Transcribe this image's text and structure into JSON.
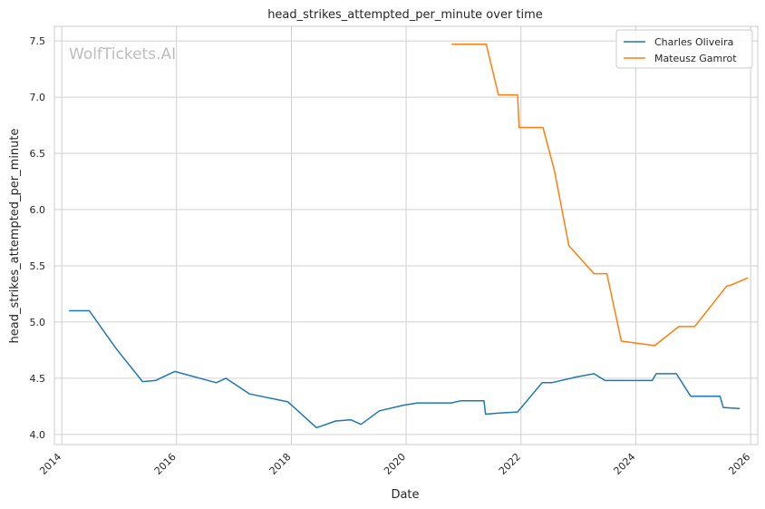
{
  "chart_data": {
    "type": "line",
    "title": "head_strikes_attempted_per_minute over time",
    "xlabel": "Date",
    "ylabel": "head_strikes_attempted_per_minute",
    "watermark": "WolfTickets.AI",
    "xlim": [
      "2013-11-15",
      "2026-02-15"
    ],
    "ylim": [
      3.91,
      7.63
    ],
    "x_ticks": [
      "2014",
      "2016",
      "2018",
      "2020",
      "2022",
      "2024",
      "2026"
    ],
    "y_ticks": [
      "4.0",
      "4.5",
      "5.0",
      "5.5",
      "6.0",
      "6.5",
      "7.0",
      "7.5"
    ],
    "grid": true,
    "legend_position": "top-right",
    "series": [
      {
        "name": "Charles Oliveira",
        "color": "#1f77b4",
        "points": [
          [
            "2014-02-20",
            5.1
          ],
          [
            "2014-06-25",
            5.1
          ],
          [
            "2014-12-15",
            4.76
          ],
          [
            "2015-05-30",
            4.47
          ],
          [
            "2015-08-20",
            4.48
          ],
          [
            "2015-12-20",
            4.56
          ],
          [
            "2016-09-10",
            4.46
          ],
          [
            "2016-11-10",
            4.5
          ],
          [
            "2017-04-10",
            4.36
          ],
          [
            "2017-12-10",
            4.29
          ],
          [
            "2018-06-10",
            4.06
          ],
          [
            "2018-10-10",
            4.12
          ],
          [
            "2019-01-15",
            4.13
          ],
          [
            "2019-03-20",
            4.09
          ],
          [
            "2019-07-15",
            4.21
          ],
          [
            "2019-12-15",
            4.26
          ],
          [
            "2020-03-15",
            4.28
          ],
          [
            "2020-10-15",
            4.28
          ],
          [
            "2020-12-15",
            4.3
          ],
          [
            "2021-05-10",
            4.3
          ],
          [
            "2021-05-20",
            4.18
          ],
          [
            "2021-08-15",
            4.19
          ],
          [
            "2021-12-10",
            4.2
          ],
          [
            "2022-05-15",
            4.46
          ],
          [
            "2022-07-15",
            4.46
          ],
          [
            "2022-12-15",
            4.51
          ],
          [
            "2023-04-10",
            4.54
          ],
          [
            "2023-06-20",
            4.48
          ],
          [
            "2024-04-15",
            4.48
          ],
          [
            "2024-05-10",
            4.54
          ],
          [
            "2024-09-15",
            4.54
          ],
          [
            "2024-12-15",
            4.34
          ],
          [
            "2025-06-20",
            4.34
          ],
          [
            "2025-07-10",
            4.24
          ],
          [
            "2025-10-20",
            4.23
          ]
        ]
      },
      {
        "name": "Mateusz Gamrot",
        "color": "#ff7f0e",
        "points": [
          [
            "2020-10-20",
            7.47
          ],
          [
            "2021-05-25",
            7.47
          ],
          [
            "2021-08-10",
            7.02
          ],
          [
            "2021-12-10",
            7.02
          ],
          [
            "2021-12-20",
            6.73
          ],
          [
            "2022-05-20",
            6.73
          ],
          [
            "2022-08-01",
            6.35
          ],
          [
            "2022-11-01",
            5.68
          ],
          [
            "2023-04-10",
            5.43
          ],
          [
            "2023-07-01",
            5.43
          ],
          [
            "2023-10-01",
            4.83
          ],
          [
            "2024-05-01",
            4.79
          ],
          [
            "2024-10-01",
            4.96
          ],
          [
            "2025-01-10",
            4.96
          ],
          [
            "2025-08-01",
            5.32
          ],
          [
            "2025-09-01",
            5.33
          ],
          [
            "2025-12-10",
            5.39
          ]
        ]
      }
    ]
  }
}
